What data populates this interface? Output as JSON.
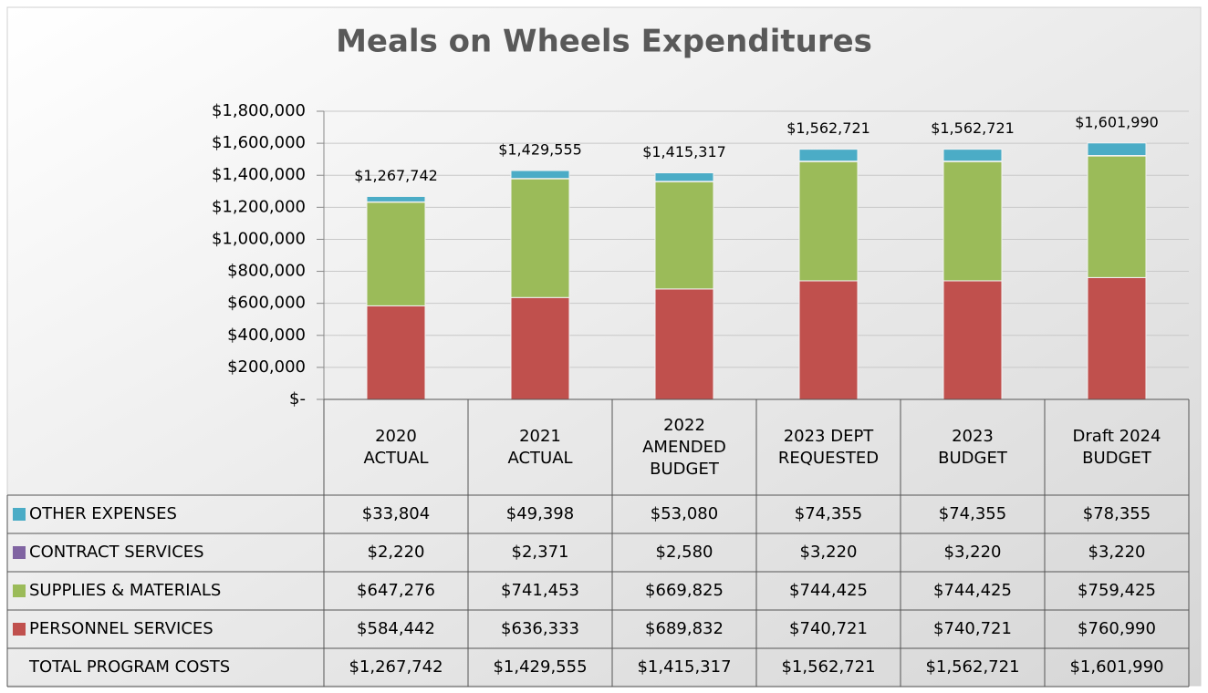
{
  "chart_data": {
    "type": "bar",
    "stacked": true,
    "title": "Meals on Wheels Expenditures",
    "categories": [
      "2020\nACTUAL",
      "2021\nACTUAL",
      "2022\nAMENDED\nBUDGET",
      "2023 DEPT\nREQUESTED",
      "2023\nBUDGET",
      "Draft 2024\nBUDGET"
    ],
    "series": [
      {
        "name": "PERSONNEL SERVICES",
        "color": "#c0504d",
        "values": [
          584442,
          636333,
          689832,
          740721,
          740721,
          760990
        ],
        "value_labels": [
          "$584,442",
          "$636,333",
          "$689,832",
          "$740,721",
          "$740,721",
          "$760,990"
        ]
      },
      {
        "name": "SUPPLIES & MATERIALS",
        "color": "#9bbb59",
        "values": [
          647276,
          741453,
          669825,
          744425,
          744425,
          759425
        ],
        "value_labels": [
          "$647,276",
          "$741,453",
          "$669,825",
          "$744,425",
          "$744,425",
          "$759,425"
        ]
      },
      {
        "name": "CONTRACT SERVICES",
        "color": "#8064a2",
        "values": [
          2220,
          2371,
          2580,
          3220,
          3220,
          3220
        ],
        "value_labels": [
          "$2,220",
          "$2,371",
          "$2,580",
          "$3,220",
          "$3,220",
          "$3,220"
        ]
      },
      {
        "name": "OTHER EXPENSES",
        "color": "#4bacc6",
        "values": [
          33804,
          49398,
          53080,
          74355,
          74355,
          78355
        ],
        "value_labels": [
          "$33,804",
          "$49,398",
          "$53,080",
          "$74,355",
          "$74,355",
          "$78,355"
        ]
      }
    ],
    "total": {
      "name": "TOTAL PROGRAM COSTS",
      "values": [
        1267742,
        1429555,
        1415317,
        1562721,
        1562721,
        1601990
      ],
      "value_labels": [
        "$1,267,742",
        "$1,429,555",
        "$1,415,317",
        "$1,562,721",
        "$1,562,721",
        "$1,601,990"
      ]
    },
    "ylim": [
      0,
      1800000
    ],
    "yticks": [
      {
        "value": 0,
        "label": "$-"
      },
      {
        "value": 200000,
        "label": "$200,000"
      },
      {
        "value": 400000,
        "label": "$400,000"
      },
      {
        "value": 600000,
        "label": "$600,000"
      },
      {
        "value": 800000,
        "label": "$800,000"
      },
      {
        "value": 1000000,
        "label": "$1,000,000"
      },
      {
        "value": 1200000,
        "label": "$1,200,000"
      },
      {
        "value": 1400000,
        "label": "$1,400,000"
      },
      {
        "value": 1600000,
        "label": "$1,600,000"
      },
      {
        "value": 1800000,
        "label": "$1,800,000"
      }
    ],
    "grid": true,
    "legend": "table"
  }
}
